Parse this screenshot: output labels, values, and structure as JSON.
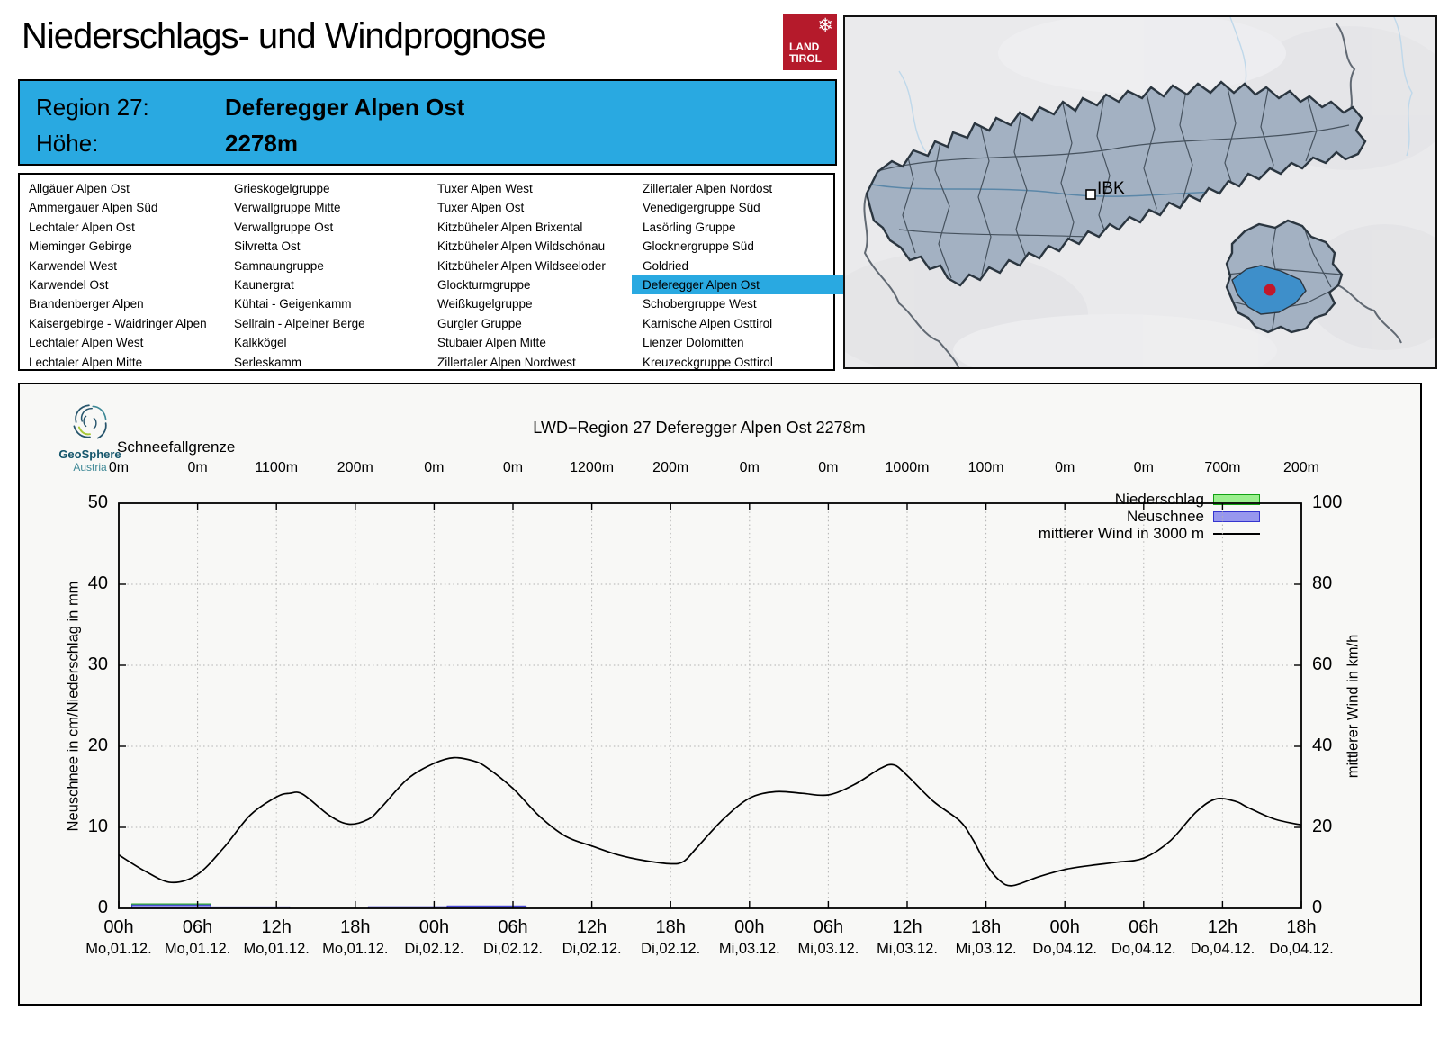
{
  "header": {
    "title": "Niederschlags- und Windprognose",
    "logo": {
      "line1": "LAND",
      "line2": "TIROL",
      "brand_color": "#b51a2b",
      "snowflake_icon": "snowflake"
    }
  },
  "banner": {
    "region_label": "Region 27:",
    "region_name": "Deferegger Alpen Ost",
    "altitude_label": "Höhe:",
    "altitude_value": "2278m",
    "accent_color": "#29a9e1"
  },
  "regions": {
    "selected": "Deferegger Alpen Ost",
    "columns": [
      [
        "Allgäuer Alpen Ost",
        "Ammergauer Alpen Süd",
        "Lechtaler Alpen Ost",
        "Mieminger Gebirge",
        "Karwendel West",
        "Karwendel Ost",
        "Brandenberger Alpen",
        "Kaisergebirge - Waidringer Alpen",
        "Lechtaler Alpen West",
        "Lechtaler Alpen Mitte"
      ],
      [
        "Grieskogelgruppe",
        "Verwallgruppe Mitte",
        "Verwallgruppe Ost",
        "Silvretta Ost",
        "Samnaungruppe",
        "Kaunergrat",
        "Kühtai - Geigenkamm",
        "Sellrain - Alpeiner Berge",
        "Kalkkögel",
        "Serleskamm"
      ],
      [
        "Tuxer Alpen West",
        "Tuxer Alpen Ost",
        "Kitzbüheler Alpen Brixental",
        "Kitzbüheler Alpen Wildschönau",
        "Kitzbüheler Alpen Wildseeloder",
        "Glockturmgruppe",
        "Weißkugelgruppe",
        "Gurgler Gruppe",
        "Stubaier Alpen Mitte",
        "Zillertaler Alpen Nordwest"
      ],
      [
        "Zillertaler Alpen Nordost",
        "Venedigergruppe Süd",
        "Lasörling Gruppe",
        "Glocknergruppe Süd",
        "Goldried",
        "Deferegger Alpen Ost",
        "Schobergruppe West",
        "Karnische Alpen Osttirol",
        "Lienzer Dolomitten",
        "Kreuzeckgruppe Osttirol"
      ]
    ]
  },
  "map": {
    "city_label": "IBK",
    "highlight_color": "#3e8fca",
    "marker_color": "#c0182b"
  },
  "chart": {
    "source": {
      "name": "GeoSphere",
      "sub": "Austria"
    },
    "title": "LWD−Region 27 Deferegger Alpen Ost 2278m",
    "snowline_label": "Schneefallgrenze",
    "y_left_label": "Neuschnee in cm/Niederschlag in mm",
    "y_right_label": "mittlerer Wind in km/h",
    "legend": [
      {
        "label": "Niederschlag",
        "type": "box",
        "fill": "#9bef8e",
        "border": "#13a113"
      },
      {
        "label": "Neuschnee",
        "type": "box",
        "fill": "#9797ee",
        "border": "#3434cf"
      },
      {
        "label": "mittlerer Wind in 3000 m",
        "type": "line",
        "color": "#000000"
      }
    ]
  },
  "chart_data": {
    "type": "line+bar",
    "title": "LWD−Region 27 Deferegger Alpen Ost 2278m",
    "ylim_left": [
      0,
      50
    ],
    "ylim_right": [
      0,
      100
    ],
    "y_left_ticks": [
      0,
      10,
      20,
      30,
      40,
      50
    ],
    "y_right_ticks": [
      0,
      20,
      40,
      60,
      80,
      100
    ],
    "grid": "dotted",
    "legend_position": "top-right",
    "x_ticks": [
      {
        "hour": "00h",
        "date": "Mo,01.12."
      },
      {
        "hour": "06h",
        "date": "Mo,01.12."
      },
      {
        "hour": "12h",
        "date": "Mo,01.12."
      },
      {
        "hour": "18h",
        "date": "Mo,01.12."
      },
      {
        "hour": "00h",
        "date": "Di,02.12."
      },
      {
        "hour": "06h",
        "date": "Di,02.12."
      },
      {
        "hour": "12h",
        "date": "Di,02.12."
      },
      {
        "hour": "18h",
        "date": "Di,02.12."
      },
      {
        "hour": "00h",
        "date": "Mi,03.12."
      },
      {
        "hour": "06h",
        "date": "Mi,03.12."
      },
      {
        "hour": "12h",
        "date": "Mi,03.12."
      },
      {
        "hour": "18h",
        "date": "Mi,03.12."
      },
      {
        "hour": "00h",
        "date": "Do,04.12."
      },
      {
        "hour": "06h",
        "date": "Do,04.12."
      },
      {
        "hour": "12h",
        "date": "Do,04.12."
      },
      {
        "hour": "18h",
        "date": "Do,04.12."
      }
    ],
    "snowline_values": [
      "0m",
      "0m",
      "1100m",
      "200m",
      "0m",
      "0m",
      "1200m",
      "200m",
      "0m",
      "0m",
      "1000m",
      "100m",
      "0m",
      "0m",
      "700m",
      "200m"
    ],
    "series": [
      {
        "name": "Niederschlag",
        "unit": "mm",
        "type": "bar",
        "bars": [
          {
            "start_h": 1,
            "end_h": 7,
            "value": 0.55
          }
        ]
      },
      {
        "name": "Neuschnee",
        "unit": "cm",
        "type": "bar",
        "bars": [
          {
            "start_h": 1,
            "end_h": 7,
            "value": 0.42
          },
          {
            "start_h": 7,
            "end_h": 13,
            "value": 0.18
          },
          {
            "start_h": 19,
            "end_h": 25,
            "value": 0.2
          },
          {
            "start_h": 25,
            "end_h": 31,
            "value": 0.3
          }
        ]
      },
      {
        "name": "mittlerer Wind in 3000 m",
        "unit": "km/h",
        "type": "line",
        "points": [
          [
            0,
            13.2
          ],
          [
            2,
            9.2
          ],
          [
            4,
            6.4
          ],
          [
            6,
            8.4
          ],
          [
            8,
            15
          ],
          [
            10,
            23
          ],
          [
            12,
            27.5
          ],
          [
            13,
            28.4
          ],
          [
            14,
            28.2
          ],
          [
            16,
            23
          ],
          [
            17.5,
            20.8
          ],
          [
            19,
            22
          ],
          [
            20,
            25
          ],
          [
            22,
            32
          ],
          [
            24,
            35.8
          ],
          [
            25.5,
            37.2
          ],
          [
            27,
            36.4
          ],
          [
            28,
            34.8
          ],
          [
            30,
            29.6
          ],
          [
            32,
            22.8
          ],
          [
            34,
            17.8
          ],
          [
            36,
            15.4
          ],
          [
            38,
            13.2
          ],
          [
            40,
            11.8
          ],
          [
            42,
            11
          ],
          [
            43,
            11.6
          ],
          [
            44,
            15
          ],
          [
            46,
            22
          ],
          [
            48,
            27.2
          ],
          [
            50,
            28.8
          ],
          [
            52,
            28.4
          ],
          [
            54,
            28
          ],
          [
            56,
            30.6
          ],
          [
            58,
            34.6
          ],
          [
            59,
            35.4
          ],
          [
            60,
            32.8
          ],
          [
            62,
            26.4
          ],
          [
            64,
            21.6
          ],
          [
            65,
            17
          ],
          [
            66,
            11
          ],
          [
            67,
            7
          ],
          [
            68,
            5.6
          ],
          [
            70,
            7.8
          ],
          [
            72,
            9.6
          ],
          [
            74,
            10.6
          ],
          [
            76,
            11.4
          ],
          [
            78,
            12.4
          ],
          [
            80,
            16.6
          ],
          [
            82,
            23.8
          ],
          [
            83.5,
            27
          ],
          [
            85,
            26.4
          ],
          [
            86,
            24.8
          ],
          [
            88,
            22
          ],
          [
            90,
            20.6
          ]
        ]
      }
    ]
  }
}
